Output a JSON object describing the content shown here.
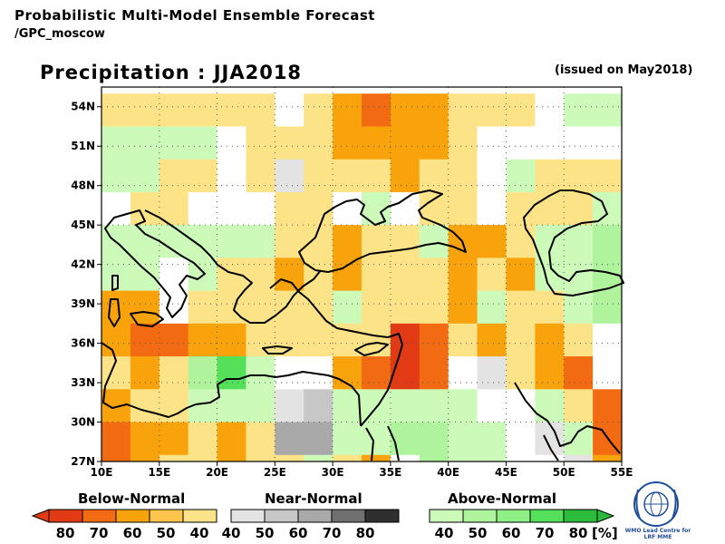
{
  "header": {
    "title": "Probabilistic Multi-Model Ensemble Forecast",
    "subtitle": "/GPC_moscow",
    "variable_title": "Precipitation : JJA2018",
    "issued": "(issued on May2018)"
  },
  "chart_data": {
    "type": "heatmap",
    "lon_range": [
      10,
      55
    ],
    "lat_range": [
      27,
      55.5
    ],
    "x_ticks": [
      "10E",
      "15E",
      "20E",
      "25E",
      "30E",
      "35E",
      "40E",
      "45E",
      "50E",
      "55E"
    ],
    "y_ticks": [
      "27N",
      "30N",
      "33N",
      "36N",
      "39N",
      "42N",
      "45N",
      "48N",
      "51N",
      "54N"
    ],
    "cell_size_deg": 2.5,
    "row_lat_starts": [
      52.5,
      50,
      47.5,
      45,
      42.5,
      40,
      37.5,
      35,
      32.5,
      30,
      27.5,
      25
    ],
    "col_lon_starts": [
      10,
      12.5,
      15,
      17.5,
      20,
      22.5,
      25,
      27.5,
      30,
      32.5,
      35,
      37.5,
      40,
      42.5,
      45,
      47.5,
      50,
      52.5
    ],
    "category_codes": {
      "W": "white (no signal)",
      "B40": "Below-Normal 40",
      "B50": "Below-Normal 50",
      "B60": "Below-Normal 60",
      "B70": "Below-Normal 70",
      "B80": "Below-Normal 80",
      "N40": "Near-Normal 40",
      "N50": "Near-Normal 50",
      "N60": "Near-Normal 60",
      "A40": "Above-Normal 40",
      "A50": "Above-Normal 50",
      "A60": "Above-Normal 60",
      "A70": "Above-Normal 70"
    },
    "grid_rows_north_to_south": [
      [
        "B40",
        "B40",
        "B40",
        "B40",
        "B40",
        "B40",
        "W",
        "B40",
        "B60",
        "B70",
        "B60",
        "B60",
        "B40",
        "B40",
        "B40",
        "W",
        "A40",
        "A40"
      ],
      [
        "A40",
        "A40",
        "A40",
        "A40",
        "W",
        "B40",
        "B40",
        "B40",
        "B60",
        "B60",
        "B60",
        "B60",
        "B40",
        "W",
        "W",
        "W",
        "W",
        "W"
      ],
      [
        "A40",
        "A40",
        "B40",
        "B40",
        "W",
        "B40",
        "N40",
        "B40",
        "B40",
        "B40",
        "B60",
        "B40",
        "B40",
        "W",
        "A40",
        "B40",
        "B40",
        "B40"
      ],
      [
        "W",
        "B40",
        "B40",
        "W",
        "W",
        "W",
        "B40",
        "B40",
        "W",
        "A40",
        "W",
        "B40",
        "B40",
        "W",
        "B40",
        "B40",
        "B40",
        "A40"
      ],
      [
        "A40",
        "A40",
        "A40",
        "A40",
        "A40",
        "A40",
        "B40",
        "B40",
        "B60",
        "B40",
        "B40",
        "A40",
        "B60",
        "B60",
        "B40",
        "A40",
        "A40",
        "A50"
      ],
      [
        "A40",
        "A40",
        "W",
        "A40",
        "B40",
        "B40",
        "B60",
        "B40",
        "B60",
        "B40",
        "B40",
        "B40",
        "B60",
        "B40",
        "B60",
        "A40",
        "A40",
        "A50"
      ],
      [
        "B60",
        "B60",
        "W",
        "B40",
        "B40",
        "B40",
        "B40",
        "B40",
        "A40",
        "B40",
        "B40",
        "B40",
        "B60",
        "A40",
        "B40",
        "B40",
        "A40",
        "A50"
      ],
      [
        "B60",
        "B70",
        "B70",
        "B60",
        "B60",
        "B40",
        "B40",
        "B40",
        "B40",
        "B40",
        "B80",
        "B70",
        "B40",
        "B60",
        "B40",
        "B60",
        "B40",
        "W"
      ],
      [
        "B40",
        "B60",
        "B40",
        "A50",
        "A70",
        "A40",
        "W",
        "W",
        "B60",
        "B70",
        "B80",
        "B70",
        "W",
        "N40",
        "B40",
        "B60",
        "B70",
        "W"
      ],
      [
        "B60",
        "B40",
        "B40",
        "A40",
        "A40",
        "A40",
        "N40",
        "N50",
        "A40",
        "A40",
        "A40",
        "A40",
        "A40",
        "W",
        "W",
        "A40",
        "B40",
        "B70"
      ],
      [
        "B70",
        "B60",
        "B60",
        "B40",
        "B60",
        "B40",
        "N60",
        "N60",
        "A40",
        "A40",
        "A50",
        "A50",
        "A40",
        "A40",
        "W",
        "N40",
        "A40",
        "B70"
      ],
      [
        "B70",
        "B60",
        "B40",
        "B40",
        "B60",
        "B40",
        "B40",
        "A40",
        "B40",
        "B60",
        "W",
        "A50",
        "A40",
        "A40",
        "W",
        "W",
        "N40",
        "B60"
      ]
    ],
    "legend": {
      "below": {
        "label": "Below-Normal",
        "ticks": [
          "80",
          "70",
          "60",
          "50",
          "40"
        ]
      },
      "near": {
        "label": "Near-Normal",
        "ticks": [
          "40",
          "50",
          "60",
          "70",
          "80"
        ]
      },
      "above": {
        "label": "Above-Normal",
        "ticks": [
          "40",
          "50",
          "60",
          "70",
          "80"
        ],
        "unit": "[%]"
      }
    },
    "colors": {
      "W": "#ffffff",
      "B40": "#fde387",
      "B50": "#fcc44a",
      "B60": "#f9a30c",
      "B70": "#f26b12",
      "B80": "#e13a14",
      "N40": "#e3e3e3",
      "N50": "#c7c7c7",
      "N60": "#a9a9a9",
      "N70": "#707070",
      "N80": "#2f2f2f",
      "A40": "#ccfbb9",
      "A50": "#b0f39d",
      "A60": "#8fee86",
      "A70": "#55e059",
      "A80": "#2dbb3d"
    }
  },
  "logo": {
    "text_line1": "WMO Lead Centre for",
    "text_line2": "LRF MME"
  }
}
